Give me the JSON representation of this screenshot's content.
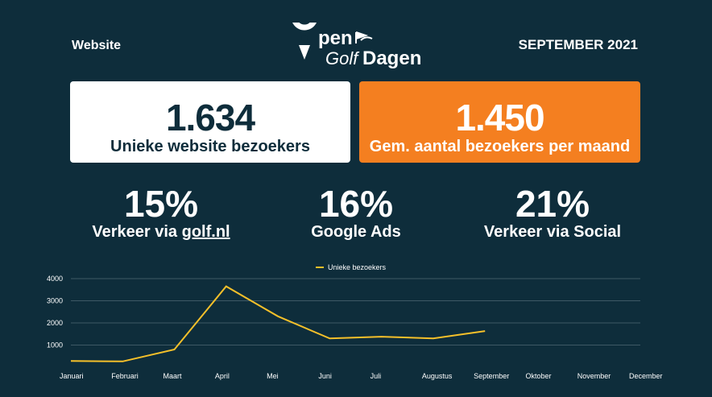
{
  "header": {
    "section": "Website",
    "period": "SEPTEMBER 2021",
    "logo_text": "OpenGolfDagen"
  },
  "cards": [
    {
      "value": "1.634",
      "label": "Unieke website bezoekers"
    },
    {
      "value": "1.450",
      "label": "Gem. aantal bezoekers per maand"
    }
  ],
  "stats": [
    {
      "pct": "15%",
      "label_prefix": "Verkeer via ",
      "label_link": "golf.nl"
    },
    {
      "pct": "16%",
      "label": "Google Ads"
    },
    {
      "pct": "21%",
      "label": "Verkeer via Social"
    }
  ],
  "colors": {
    "background": "#0e2d3b",
    "accent": "#f47f20",
    "line": "#f5c02a",
    "card_light": "#ffffff"
  },
  "chart_data": {
    "type": "line",
    "categories": [
      "Januari",
      "Februari",
      "Maart",
      "April",
      "Mei",
      "Juni",
      "Juli",
      "Augustus",
      "September",
      "Oktober",
      "November",
      "December"
    ],
    "series": [
      {
        "name": "Unieke bezoekers",
        "values": [
          280,
          260,
          800,
          3650,
          2300,
          1300,
          1380,
          1300,
          1634,
          null,
          null,
          null
        ]
      }
    ],
    "yticks": [
      1000,
      2000,
      3000,
      4000
    ],
    "ylim": [
      0,
      4000
    ],
    "grid": true,
    "legend": "top-center"
  }
}
